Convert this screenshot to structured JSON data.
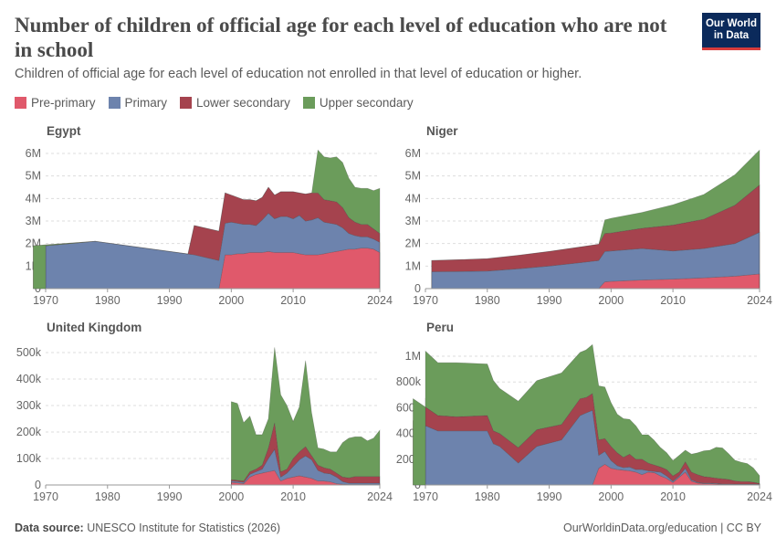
{
  "header": {
    "title": "Number of children of official age for each level of education who are not in school",
    "subtitle": "Children of official age for each level of education not enrolled in that level of education or higher.",
    "logo_line1": "Our World",
    "logo_line2": "in Data"
  },
  "legend": [
    {
      "label": "Pre-primary",
      "color": "#e0596b"
    },
    {
      "label": "Primary",
      "color": "#6d83ad"
    },
    {
      "label": "Lower secondary",
      "color": "#a5434e"
    },
    {
      "label": "Upper secondary",
      "color": "#6b9c5b"
    }
  ],
  "footer": {
    "source_label": "Data source:",
    "source_text": "UNESCO Institute for Statistics (2026)",
    "right_text": "OurWorldinData.org/education | CC BY"
  },
  "chart_data": [
    {
      "type": "area",
      "title": "Egypt",
      "xlim": [
        1970,
        2024
      ],
      "ylim": [
        0,
        6000000
      ],
      "xticks": [
        1970,
        1980,
        1990,
        2000,
        2010,
        2024
      ],
      "yticks": [
        0,
        1000000,
        2000000,
        3000000,
        4000000,
        5000000,
        6000000
      ],
      "ytick_labels": [
        "0",
        "1M",
        "2M",
        "3M",
        "4M",
        "5M",
        "6M"
      ],
      "series": [
        {
          "name": "Pre-primary",
          "x": [
            1998,
            1999,
            2000,
            2001,
            2002,
            2003,
            2004,
            2005,
            2006,
            2007,
            2008,
            2009,
            2010,
            2011,
            2012,
            2013,
            2014,
            2015,
            2016,
            2017,
            2018,
            2019,
            2020,
            2021,
            2022,
            2023,
            2024
          ],
          "values": [
            0,
            1500000,
            1500000,
            1550000,
            1550000,
            1600000,
            1600000,
            1600000,
            1650000,
            1600000,
            1600000,
            1600000,
            1600000,
            1550000,
            1500000,
            1500000,
            1500000,
            1550000,
            1600000,
            1650000,
            1700000,
            1750000,
            1750000,
            1800000,
            1800000,
            1750000,
            1600000
          ]
        },
        {
          "name": "Primary",
          "x": [
            1968,
            1978,
            1994,
            1998,
            1999,
            2000,
            2001,
            2002,
            2003,
            2004,
            2005,
            2006,
            2007,
            2008,
            2009,
            2010,
            2011,
            2012,
            2013,
            2014,
            2015,
            2016,
            2017,
            2018,
            2019,
            2020,
            2021,
            2022,
            2023,
            2024
          ],
          "values": [
            1900000,
            2100000,
            1500000,
            1250000,
            1400000,
            1450000,
            1350000,
            1300000,
            1250000,
            1200000,
            1450000,
            1700000,
            1500000,
            1600000,
            1600000,
            1500000,
            1700000,
            1500000,
            1550000,
            1650000,
            1400000,
            1300000,
            1200000,
            1000000,
            700000,
            600000,
            500000,
            500000,
            450000,
            450000
          ]
        },
        {
          "name": "Lower secondary",
          "x": [
            1993,
            1994,
            1998,
            1999,
            2000,
            2001,
            2002,
            2003,
            2004,
            2005,
            2006,
            2007,
            2008,
            2009,
            2010,
            2011,
            2012,
            2013,
            2014,
            2015,
            2016,
            2017,
            2018,
            2019,
            2020,
            2021,
            2022,
            2023,
            2024
          ],
          "values": [
            0,
            1300000,
            1300000,
            1350000,
            1200000,
            1150000,
            1100000,
            1100000,
            1100000,
            1000000,
            1150000,
            1050000,
            1100000,
            1100000,
            1200000,
            1000000,
            1200000,
            1200000,
            1100000,
            1000000,
            1000000,
            1000000,
            900000,
            700000,
            600000,
            550000,
            550000,
            450000,
            400000
          ]
        },
        {
          "name": "Upper secondary",
          "x": [
            2013,
            2014,
            2015,
            2016,
            2017,
            2018,
            2019,
            2020,
            2021,
            2022,
            2023,
            2024
          ],
          "values": [
            0,
            1900000,
            1900000,
            1900000,
            2000000,
            2000000,
            1750000,
            1550000,
            1600000,
            1600000,
            1700000,
            2000000
          ]
        }
      ]
    },
    {
      "type": "area",
      "title": "Niger",
      "xlim": [
        1970,
        2024
      ],
      "ylim": [
        0,
        6000000
      ],
      "xticks": [
        1970,
        1980,
        1990,
        2000,
        2010,
        2024
      ],
      "yticks": [
        0,
        1000000,
        2000000,
        3000000,
        4000000,
        5000000,
        6000000
      ],
      "ytick_labels": [
        "0",
        "1M",
        "2M",
        "3M",
        "4M",
        "5M",
        "6M"
      ],
      "series": [
        {
          "name": "Pre-primary",
          "x": [
            1998,
            1999,
            2000,
            2005,
            2010,
            2015,
            2020,
            2024
          ],
          "values": [
            0,
            300000,
            320000,
            380000,
            420000,
            480000,
            550000,
            650000
          ]
        },
        {
          "name": "Primary",
          "x": [
            1971,
            1975,
            1980,
            1985,
            1990,
            1995,
            1998,
            1999,
            2000,
            2005,
            2010,
            2015,
            2020,
            2024
          ],
          "values": [
            750000,
            760000,
            780000,
            880000,
            1000000,
            1150000,
            1250000,
            1350000,
            1350000,
            1400000,
            1250000,
            1300000,
            1450000,
            1850000
          ]
        },
        {
          "name": "Lower secondary",
          "x": [
            1971,
            1975,
            1980,
            1985,
            1990,
            1995,
            1998,
            1999,
            2000,
            2005,
            2010,
            2015,
            2020,
            2024
          ],
          "values": [
            500000,
            520000,
            550000,
            600000,
            650000,
            700000,
            720000,
            800000,
            800000,
            900000,
            1150000,
            1300000,
            1700000,
            2100000
          ]
        },
        {
          "name": "Upper secondary",
          "x": [
            1998,
            1999,
            2000,
            2005,
            2010,
            2015,
            2020,
            2024
          ],
          "values": [
            0,
            600000,
            650000,
            700000,
            900000,
            1100000,
            1350000,
            1550000
          ]
        }
      ]
    },
    {
      "type": "area",
      "title": "United Kingdom",
      "xlim": [
        1970,
        2024
      ],
      "ylim": [
        0,
        500000
      ],
      "xticks": [
        1970,
        1980,
        1990,
        2000,
        2010,
        2024
      ],
      "yticks": [
        0,
        100000,
        200000,
        300000,
        400000,
        500000
      ],
      "ytick_labels": [
        "0",
        "100k",
        "200k",
        "300k",
        "400k",
        "500k"
      ],
      "series": [
        {
          "name": "Pre-primary",
          "x": [
            2000,
            2001,
            2002,
            2003,
            2004,
            2005,
            2006,
            2007,
            2008,
            2009,
            2010,
            2011,
            2012,
            2013,
            2014,
            2015,
            2016,
            2017,
            2018,
            2019,
            2020,
            2021,
            2022,
            2023,
            2024
          ],
          "values": [
            10000,
            8000,
            5000,
            30000,
            40000,
            45000,
            50000,
            55000,
            15000,
            25000,
            30000,
            35000,
            30000,
            25000,
            15000,
            15000,
            12000,
            5000,
            3000,
            2000,
            2000,
            2000,
            2000,
            2000,
            2000
          ]
        },
        {
          "name": "Primary",
          "x": [
            2000,
            2001,
            2002,
            2003,
            2004,
            2005,
            2006,
            2007,
            2008,
            2009,
            2010,
            2011,
            2012,
            2013,
            2014,
            2015,
            2016,
            2017,
            2018,
            2019,
            2020,
            2021,
            2022,
            2023,
            2024
          ],
          "values": [
            5000,
            5000,
            5000,
            10000,
            10000,
            15000,
            50000,
            80000,
            15000,
            20000,
            40000,
            60000,
            80000,
            70000,
            40000,
            30000,
            30000,
            25000,
            10000,
            5000,
            5000,
            5000,
            5000,
            5000,
            5000
          ]
        },
        {
          "name": "Lower secondary",
          "x": [
            2000,
            2001,
            2002,
            2003,
            2004,
            2005,
            2006,
            2007,
            2008,
            2009,
            2010,
            2011,
            2012,
            2013,
            2014,
            2015,
            2016,
            2017,
            2018,
            2019,
            2020,
            2021,
            2022,
            2023,
            2024
          ],
          "values": [
            5000,
            5000,
            5000,
            10000,
            10000,
            15000,
            40000,
            100000,
            20000,
            15000,
            30000,
            30000,
            35000,
            15000,
            20000,
            20000,
            18000,
            15000,
            17000,
            20000,
            25000,
            25000,
            25000,
            25000,
            25000
          ]
        },
        {
          "name": "Upper secondary",
          "x": [
            2000,
            2001,
            2002,
            2003,
            2004,
            2005,
            2006,
            2007,
            2008,
            2009,
            2010,
            2011,
            2012,
            2013,
            2014,
            2015,
            2016,
            2017,
            2018,
            2019,
            2020,
            2021,
            2022,
            2023,
            2024
          ],
          "values": [
            295000,
            290000,
            220000,
            210000,
            130000,
            115000,
            110000,
            285000,
            290000,
            240000,
            140000,
            170000,
            325000,
            160000,
            65000,
            70000,
            65000,
            80000,
            130000,
            150000,
            150000,
            150000,
            135000,
            145000,
            175000
          ]
        }
      ]
    },
    {
      "type": "area",
      "title": "Peru",
      "xlim": [
        1970,
        2024
      ],
      "ylim": [
        0,
        1100000
      ],
      "xticks": [
        1970,
        1980,
        1990,
        2000,
        2010,
        2024
      ],
      "yticks": [
        0,
        200000,
        400000,
        600000,
        800000,
        1000000
      ],
      "ytick_labels": [
        "0",
        "200k",
        "400k",
        "600k",
        "800k",
        "1M"
      ],
      "series": [
        {
          "name": "Pre-primary",
          "x": [
            1997,
            1998,
            1999,
            2000,
            2001,
            2002,
            2003,
            2004,
            2005,
            2006,
            2007,
            2008,
            2009,
            2010,
            2011,
            2012,
            2013,
            2014,
            2015,
            2016,
            2017,
            2018,
            2019,
            2020,
            2021,
            2022,
            2023,
            2024
          ],
          "values": [
            0,
            130000,
            160000,
            130000,
            120000,
            115000,
            110000,
            100000,
            80000,
            100000,
            95000,
            70000,
            50000,
            20000,
            60000,
            100000,
            30000,
            15000,
            10000,
            10000,
            8000,
            5000,
            5000,
            5000,
            5000,
            5000,
            5000,
            5000
          ]
        },
        {
          "name": "Primary",
          "x": [
            1968,
            1972,
            1975,
            1980,
            1981,
            1982,
            1985,
            1988,
            1992,
            1995,
            1996,
            1997,
            1998,
            1999,
            2000,
            2001,
            2002,
            2003,
            2004,
            2005,
            2006,
            2007,
            2008,
            2009,
            2010,
            2011,
            2012,
            2013,
            2014,
            2015,
            2016,
            2017,
            2018,
            2019,
            2020,
            2021,
            2022,
            2023,
            2024
          ],
          "values": [
            500000,
            420000,
            420000,
            420000,
            320000,
            300000,
            170000,
            300000,
            350000,
            540000,
            560000,
            580000,
            100000,
            100000,
            60000,
            30000,
            20000,
            30000,
            20000,
            40000,
            10000,
            10000,
            30000,
            20000,
            10000,
            10000,
            30000,
            10000,
            5000,
            5000,
            5000,
            5000,
            3000,
            3000,
            2000,
            2000,
            2000,
            2000,
            2000
          ]
        },
        {
          "name": "Lower secondary",
          "x": [
            1968,
            1972,
            1975,
            1980,
            1981,
            1982,
            1985,
            1988,
            1992,
            1995,
            1996,
            1997,
            1998,
            1999,
            2000,
            2001,
            2002,
            2003,
            2004,
            2005,
            2006,
            2007,
            2008,
            2009,
            2010,
            2011,
            2012,
            2013,
            2014,
            2015,
            2016,
            2017,
            2018,
            2019,
            2020,
            2021,
            2022,
            2023,
            2024
          ],
          "values": [
            170000,
            120000,
            110000,
            120000,
            100000,
            100000,
            120000,
            130000,
            120000,
            130000,
            120000,
            130000,
            120000,
            100000,
            110000,
            100000,
            80000,
            100000,
            80000,
            80000,
            60000,
            50000,
            40000,
            50000,
            40000,
            30000,
            50000,
            60000,
            60000,
            50000,
            45000,
            40000,
            40000,
            35000,
            25000,
            20000,
            20000,
            15000,
            5000
          ]
        },
        {
          "name": "Upper secondary",
          "x": [
            1968,
            1972,
            1975,
            1980,
            1981,
            1982,
            1985,
            1988,
            1992,
            1995,
            1996,
            1997,
            1998,
            1999,
            2000,
            2001,
            2002,
            2003,
            2004,
            2005,
            2006,
            2007,
            2008,
            2009,
            2010,
            2011,
            2012,
            2013,
            2014,
            2015,
            2016,
            2017,
            2018,
            2019,
            2020,
            2021,
            2022,
            2023,
            2024
          ],
          "values": [
            370000,
            410000,
            420000,
            400000,
            390000,
            350000,
            360000,
            380000,
            400000,
            360000,
            370000,
            380000,
            420000,
            400000,
            340000,
            300000,
            300000,
            270000,
            260000,
            190000,
            220000,
            190000,
            150000,
            130000,
            120000,
            130000,
            90000,
            140000,
            170000,
            200000,
            210000,
            240000,
            240000,
            200000,
            160000,
            150000,
            140000,
            110000,
            60000
          ]
        }
      ]
    }
  ]
}
